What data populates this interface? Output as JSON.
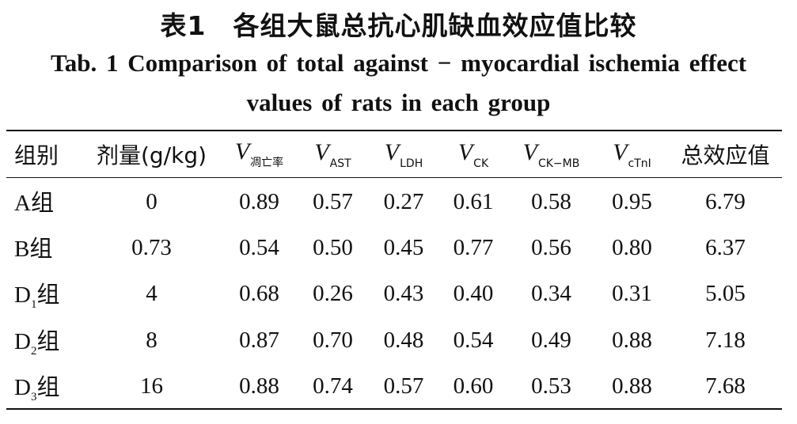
{
  "title": {
    "chinese": "表1　各组大鼠总抗心肌缺血效应值比较",
    "english_line1": "Tab. 1   Comparison of total against − myocardial ischemia effect",
    "english_line2": "values of rats in each group"
  },
  "table": {
    "headers": [
      {
        "text": "组别"
      },
      {
        "text": "剂量(g/kg)"
      },
      {
        "var": "V",
        "sub": "凋亡率"
      },
      {
        "var": "V",
        "sub": "AST"
      },
      {
        "var": "V",
        "sub": "LDH"
      },
      {
        "var": "V",
        "sub": "CK"
      },
      {
        "var": "V",
        "sub": "CK−MB"
      },
      {
        "var": "V",
        "sub": "cTnI"
      },
      {
        "text": "总效应值"
      }
    ],
    "rows": [
      {
        "group": "A",
        "group_sub": "",
        "group_suffix": "组",
        "values": [
          "0",
          "0.89",
          "0.57",
          "0.27",
          "0.61",
          "0.58",
          "0.95",
          "6.79"
        ]
      },
      {
        "group": "B",
        "group_sub": "",
        "group_suffix": "组",
        "values": [
          "0.73",
          "0.54",
          "0.50",
          "0.45",
          "0.77",
          "0.56",
          "0.80",
          "6.37"
        ]
      },
      {
        "group": "D",
        "group_sub": "1",
        "group_suffix": "组",
        "values": [
          "4",
          "0.68",
          "0.26",
          "0.43",
          "0.40",
          "0.34",
          "0.31",
          "5.05"
        ]
      },
      {
        "group": "D",
        "group_sub": "2",
        "group_suffix": "组",
        "values": [
          "8",
          "0.87",
          "0.70",
          "0.48",
          "0.54",
          "0.49",
          "0.88",
          "7.18"
        ]
      },
      {
        "group": "D",
        "group_sub": "3",
        "group_suffix": "组",
        "values": [
          "16",
          "0.88",
          "0.74",
          "0.57",
          "0.60",
          "0.53",
          "0.88",
          "7.68"
        ]
      }
    ]
  }
}
